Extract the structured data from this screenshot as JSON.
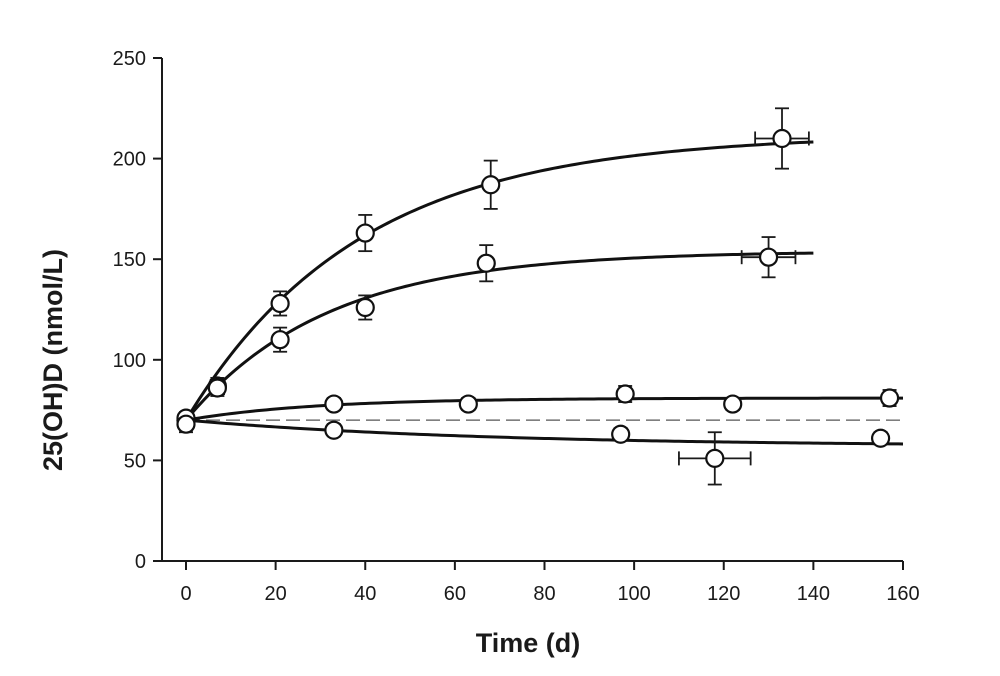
{
  "chart_data": {
    "type": "scatter",
    "title": "",
    "xlabel": "Time (d)",
    "ylabel": "25(OH)D (nmol/L)",
    "xlim": [
      0,
      160
    ],
    "ylim": [
      0,
      250
    ],
    "x_ticks": [
      "0",
      "20",
      "40",
      "60",
      "80",
      "100",
      "120",
      "140",
      "160"
    ],
    "y_ticks": [
      "0",
      "50",
      "100",
      "150",
      "200",
      "250"
    ],
    "grid": false,
    "legend": "none",
    "reference_line": {
      "y": 70,
      "style": "dashed"
    },
    "series": [
      {
        "points": [
          {
            "x": 0,
            "y": 70,
            "yerr": 3
          },
          {
            "x": 7,
            "y": 87,
            "yerr": 4,
            "xerr": 1.5
          },
          {
            "x": 21,
            "y": 128,
            "yerr": 6
          },
          {
            "x": 40,
            "y": 163,
            "yerr": 9
          },
          {
            "x": 68,
            "y": 187,
            "yerr": 12
          },
          {
            "x": 133,
            "y": 210,
            "yerr": 15,
            "xerr": 6
          }
        ],
        "fit": {
          "start": 70,
          "plateau": 212,
          "rate": 0.026,
          "x_end": 140
        }
      },
      {
        "points": [
          {
            "x": 0,
            "y": 70,
            "yerr": 3
          },
          {
            "x": 7,
            "y": 86,
            "yerr": 4,
            "xerr": 1.5
          },
          {
            "x": 21,
            "y": 110,
            "yerr": 6
          },
          {
            "x": 40,
            "y": 126,
            "yerr": 6
          },
          {
            "x": 67,
            "y": 148,
            "yerr": 9
          },
          {
            "x": 130,
            "y": 151,
            "yerr": 10,
            "xerr": 6
          }
        ],
        "fit": {
          "start": 70,
          "plateau": 154,
          "rate": 0.032,
          "x_end": 140
        }
      },
      {
        "points": [
          {
            "x": 0,
            "y": 71,
            "yerr": 3
          },
          {
            "x": 33,
            "y": 78,
            "yerr": 3
          },
          {
            "x": 63,
            "y": 78,
            "yerr": 3
          },
          {
            "x": 98,
            "y": 83,
            "yerr": 4
          },
          {
            "x": 122,
            "y": 78,
            "yerr": 3
          },
          {
            "x": 157,
            "y": 81,
            "yerr": 4
          }
        ],
        "fit": {
          "start": 70,
          "plateau": 81,
          "rate": 0.035,
          "x_end": 160
        }
      },
      {
        "points": [
          {
            "x": 0,
            "y": 68,
            "yerr": 4
          },
          {
            "x": 33,
            "y": 65,
            "yerr": 3
          },
          {
            "x": 97,
            "y": 63,
            "yerr": 3
          },
          {
            "x": 118,
            "y": 51,
            "yerr": 13,
            "xerr": 8
          },
          {
            "x": 155,
            "y": 61,
            "yerr": 3
          }
        ],
        "fit": {
          "start": 70,
          "plateau": 57,
          "rate": 0.015,
          "x_end": 160
        }
      }
    ]
  }
}
